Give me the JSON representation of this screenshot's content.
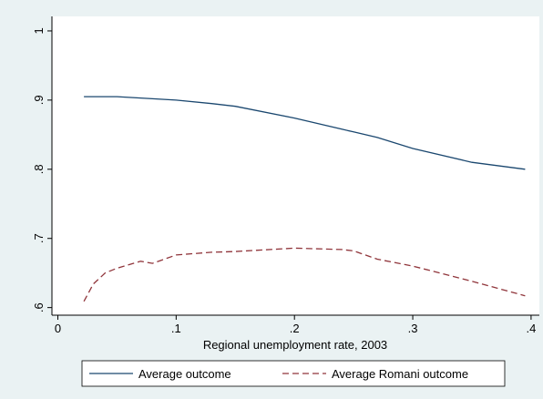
{
  "chart_data": {
    "type": "line",
    "x_label": "Regional unemployment rate, 2003",
    "x": [
      0.022,
      0.03,
      0.04,
      0.05,
      0.07,
      0.08,
      0.1,
      0.13,
      0.15,
      0.2,
      0.24,
      0.25,
      0.27,
      0.3,
      0.35,
      0.395
    ],
    "series": [
      {
        "name": "Average outcome",
        "color": "#1a476f",
        "dash": false,
        "values": [
          0.905,
          0.905,
          0.905,
          0.905,
          0.903,
          0.902,
          0.9,
          0.895,
          0.891,
          0.874,
          0.858,
          0.854,
          0.846,
          0.83,
          0.81,
          0.8
        ]
      },
      {
        "name": "Average Romani outcome",
        "color": "#90353b",
        "dash": true,
        "values": [
          0.609,
          0.634,
          0.65,
          0.657,
          0.667,
          0.664,
          0.676,
          0.68,
          0.681,
          0.686,
          0.684,
          0.682,
          0.67,
          0.66,
          0.638,
          0.617
        ]
      }
    ],
    "xlim": [
      -0.005,
      0.407
    ],
    "xticks": [
      0,
      {
        "value": 0.1,
        "label": ".1"
      },
      {
        "value": 0.2,
        "label": ".2"
      },
      {
        "value": 0.3,
        "label": ".3"
      },
      {
        "value": 0.4,
        "label": ".4"
      }
    ],
    "ylim": [
      0.589,
      1.021
    ],
    "yticks": [
      {
        "value": 0.6,
        "label": ".6"
      },
      {
        "value": 0.7,
        "label": ".7"
      },
      {
        "value": 0.8,
        "label": ".8"
      },
      {
        "value": 0.9,
        "label": ".9"
      },
      1
    ],
    "legend": "bottom"
  }
}
